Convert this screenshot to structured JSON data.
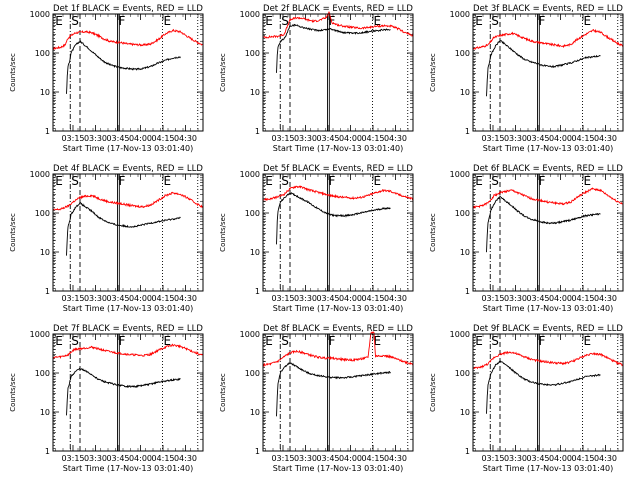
{
  "chart_data": {
    "type": "line",
    "grid_layout": "3x3",
    "xaxis": {
      "label": "Start Time (17-Nov-13 03:01:40)",
      "ticks": [
        "03:15",
        "03:30",
        "03:45",
        "04:00",
        "04:15",
        "04:30"
      ],
      "tick_minutes": [
        13.33,
        28.33,
        43.33,
        58.33,
        73.33,
        88.33
      ],
      "xlim_minutes": [
        0,
        100
      ]
    },
    "yaxis": {
      "label": "Counts/sec",
      "scale": "log",
      "ylim": [
        1,
        1000
      ],
      "ticks": [
        "1",
        "10",
        "100",
        "1000"
      ]
    },
    "series_legend": {
      "black": "Events",
      "red": "LLD"
    },
    "colors": {
      "black": "#000000",
      "red": "#ff0000"
    },
    "marker_lines": [
      {
        "label": "E",
        "minute": 0.8,
        "style": "dotted"
      },
      {
        "label": "S",
        "minute": 11.5,
        "style": "dashdot"
      },
      {
        "label": "",
        "minute": 18.0,
        "style": "dashed"
      },
      {
        "label": "F",
        "minute": 43.0,
        "style": "solid"
      },
      {
        "label": "",
        "minute": 44.2,
        "style": "solid"
      },
      {
        "label": "E",
        "minute": 73.0,
        "style": "dotted"
      },
      {
        "label": "",
        "minute": 96.5,
        "style": "dotted"
      }
    ],
    "panels": [
      {
        "title": "Det 1f BLACK = Events, RED = LLD",
        "xlabel": "Start Time (17-Nov-13 03:01:40)",
        "red": {
          "x": [
            0,
            5,
            8,
            10,
            12,
            15,
            18,
            22,
            26,
            30,
            34,
            38,
            42,
            45,
            50,
            55,
            60,
            65,
            70,
            75,
            80,
            85,
            90,
            95,
            100
          ],
          "y": [
            130,
            140,
            160,
            240,
            280,
            330,
            340,
            350,
            330,
            280,
            230,
            200,
            190,
            185,
            170,
            165,
            160,
            170,
            220,
            310,
            380,
            350,
            260,
            200,
            160
          ]
        },
        "black": {
          "x": [
            9,
            9.5,
            10,
            11,
            12,
            15,
            18,
            22,
            26,
            30,
            34,
            38,
            42,
            45,
            50,
            55,
            60,
            65,
            70,
            75,
            80,
            85
          ],
          "y": [
            9,
            25,
            45,
            60,
            100,
            160,
            200,
            150,
            110,
            80,
            60,
            50,
            45,
            42,
            40,
            38,
            40,
            45,
            55,
            65,
            75,
            80
          ]
        }
      },
      {
        "title": "Det 2f BLACK = Events, RED = LLD",
        "xlabel": "Start Time (17-Nov-13 03:01:40)",
        "red": {
          "x": [
            0,
            5,
            10,
            14,
            18,
            22,
            26,
            30,
            34,
            38,
            42,
            44,
            46,
            50,
            55,
            60,
            65,
            70,
            75,
            80,
            85,
            90,
            95,
            100
          ],
          "y": [
            250,
            260,
            270,
            300,
            700,
            800,
            780,
            700,
            650,
            700,
            800,
            1100,
            600,
            520,
            480,
            450,
            430,
            450,
            480,
            500,
            490,
            420,
            330,
            280
          ]
        },
        "black": {
          "x": [
            9,
            9.5,
            10,
            11,
            12,
            15,
            18,
            22,
            26,
            30,
            34,
            38,
            42,
            45,
            50,
            55,
            60,
            65,
            70,
            75,
            80,
            85
          ],
          "y": [
            30,
            90,
            140,
            170,
            200,
            260,
            500,
            520,
            460,
            420,
            390,
            380,
            400,
            420,
            360,
            330,
            320,
            330,
            350,
            370,
            390,
            400
          ]
        }
      },
      {
        "title": "Det 3f BLACK = Events, RED = LLD",
        "xlabel": "Start Time (17-Nov-13 03:01:40)",
        "red": {
          "x": [
            0,
            5,
            10,
            14,
            18,
            22,
            26,
            30,
            34,
            38,
            42,
            45,
            50,
            55,
            60,
            65,
            70,
            75,
            80,
            85,
            90,
            95,
            100
          ],
          "y": [
            130,
            140,
            160,
            250,
            280,
            300,
            320,
            280,
            240,
            210,
            190,
            185,
            170,
            160,
            150,
            165,
            230,
            300,
            380,
            340,
            250,
            190,
            150
          ]
        },
        "black": {
          "x": [
            9,
            9.5,
            10,
            11,
            12,
            15,
            18,
            22,
            26,
            30,
            34,
            38,
            42,
            45,
            50,
            55,
            60,
            65,
            70,
            75,
            80,
            85
          ],
          "y": [
            8,
            20,
            40,
            60,
            90,
            150,
            210,
            160,
            120,
            90,
            70,
            60,
            55,
            50,
            45,
            45,
            50,
            55,
            65,
            75,
            80,
            85
          ]
        }
      },
      {
        "title": "Det 4f BLACK = Events, RED = LLD",
        "xlabel": "Start Time (17-Nov-13 03:01:40)",
        "red": {
          "x": [
            0,
            5,
            10,
            14,
            18,
            22,
            26,
            30,
            34,
            38,
            42,
            45,
            50,
            55,
            60,
            65,
            70,
            75,
            80,
            85,
            90,
            95,
            100
          ],
          "y": [
            120,
            125,
            150,
            200,
            250,
            270,
            280,
            240,
            210,
            190,
            180,
            175,
            160,
            150,
            145,
            160,
            210,
            280,
            330,
            300,
            240,
            180,
            140
          ]
        },
        "black": {
          "x": [
            9,
            9.5,
            10,
            11,
            12,
            15,
            18,
            22,
            26,
            30,
            34,
            38,
            42,
            45,
            50,
            55,
            60,
            65,
            70,
            75,
            80,
            85
          ],
          "y": [
            8,
            22,
            45,
            60,
            90,
            140,
            180,
            140,
            110,
            80,
            65,
            55,
            50,
            48,
            45,
            45,
            50,
            55,
            60,
            65,
            70,
            75
          ]
        }
      },
      {
        "title": "Det 5f BLACK = Events, RED = LLD",
        "xlabel": "Start Time (17-Nov-13 03:01:40)",
        "red": {
          "x": [
            0,
            5,
            10,
            14,
            18,
            22,
            26,
            30,
            34,
            38,
            42,
            45,
            50,
            55,
            60,
            65,
            70,
            75,
            80,
            85,
            90,
            95,
            100
          ],
          "y": [
            220,
            230,
            260,
            300,
            420,
            480,
            460,
            400,
            360,
            330,
            300,
            280,
            260,
            250,
            240,
            250,
            280,
            330,
            380,
            360,
            300,
            260,
            230
          ]
        },
        "black": {
          "x": [
            9,
            9.5,
            10,
            11,
            12,
            15,
            18,
            22,
            26,
            30,
            34,
            38,
            42,
            45,
            50,
            55,
            60,
            65,
            70,
            75,
            80,
            85
          ],
          "y": [
            15,
            60,
            110,
            160,
            200,
            260,
            330,
            280,
            230,
            190,
            150,
            120,
            100,
            90,
            85,
            85,
            90,
            100,
            110,
            120,
            130,
            135
          ]
        }
      },
      {
        "title": "Det 6f BLACK = Events, RED = LLD",
        "xlabel": "Start Time (17-Nov-13 03:01:40)",
        "red": {
          "x": [
            0,
            5,
            10,
            14,
            18,
            22,
            26,
            30,
            34,
            38,
            42,
            45,
            50,
            55,
            60,
            65,
            70,
            75,
            80,
            85,
            90,
            95,
            100
          ],
          "y": [
            140,
            150,
            180,
            280,
            330,
            360,
            380,
            330,
            280,
            240,
            220,
            210,
            190,
            180,
            170,
            190,
            260,
            340,
            420,
            380,
            280,
            210,
            170
          ]
        },
        "black": {
          "x": [
            9,
            9.5,
            10,
            11,
            12,
            15,
            18,
            22,
            26,
            30,
            34,
            38,
            42,
            45,
            50,
            55,
            60,
            65,
            70,
            75,
            80,
            85
          ],
          "y": [
            10,
            28,
            55,
            80,
            120,
            200,
            260,
            200,
            150,
            110,
            85,
            70,
            65,
            60,
            55,
            55,
            60,
            65,
            75,
            85,
            90,
            95
          ]
        }
      },
      {
        "title": "Det 7f BLACK = Events, RED = LLD",
        "xlabel": "Start Time (17-Nov-13 03:01:40)",
        "red": {
          "x": [
            0,
            5,
            10,
            14,
            18,
            22,
            26,
            30,
            34,
            38,
            42,
            45,
            50,
            55,
            60,
            65,
            70,
            75,
            80,
            85,
            90,
            95,
            100
          ],
          "y": [
            250,
            260,
            290,
            400,
            420,
            440,
            460,
            420,
            380,
            350,
            330,
            320,
            300,
            290,
            280,
            300,
            380,
            460,
            520,
            480,
            400,
            330,
            280
          ]
        },
        "black": {
          "x": [
            9,
            9.5,
            10,
            11,
            12,
            15,
            18,
            22,
            26,
            30,
            34,
            38,
            42,
            45,
            50,
            55,
            60,
            65,
            70,
            75,
            80,
            85
          ],
          "y": [
            8,
            20,
            40,
            55,
            80,
            110,
            130,
            110,
            90,
            70,
            60,
            55,
            50,
            48,
            45,
            45,
            48,
            52,
            58,
            62,
            66,
            70
          ]
        }
      },
      {
        "title": "Det 8f BLACK = Events, RED = LLD",
        "xlabel": "Start Time (17-Nov-13 03:01:40)",
        "red": {
          "x": [
            0,
            5,
            10,
            14,
            18,
            22,
            26,
            30,
            34,
            38,
            42,
            45,
            50,
            55,
            60,
            65,
            70,
            72,
            74,
            75,
            80,
            85,
            90,
            95,
            100
          ],
          "y": [
            160,
            170,
            200,
            260,
            330,
            360,
            340,
            300,
            270,
            250,
            240,
            240,
            230,
            220,
            215,
            230,
            250,
            1100,
            1100,
            270,
            280,
            260,
            220,
            190,
            170
          ]
        },
        "black": {
          "x": [
            9,
            9.5,
            10,
            11,
            12,
            15,
            18,
            22,
            26,
            30,
            34,
            38,
            42,
            45,
            50,
            55,
            60,
            65,
            70,
            75,
            80,
            85
          ],
          "y": [
            8,
            25,
            55,
            80,
            110,
            150,
            180,
            150,
            120,
            100,
            90,
            85,
            80,
            78,
            76,
            76,
            80,
            85,
            90,
            95,
            100,
            105
          ]
        }
      },
      {
        "title": "Det 9f BLACK = Events, RED = LLD",
        "xlabel": "Start Time (17-Nov-13 03:01:40)",
        "red": {
          "x": [
            0,
            5,
            10,
            14,
            18,
            22,
            26,
            30,
            34,
            38,
            42,
            45,
            50,
            55,
            60,
            65,
            70,
            75,
            80,
            85,
            90,
            95,
            100
          ],
          "y": [
            130,
            140,
            170,
            250,
            300,
            330,
            340,
            300,
            260,
            230,
            210,
            200,
            190,
            180,
            175,
            190,
            230,
            280,
            320,
            300,
            240,
            190,
            160
          ]
        },
        "black": {
          "x": [
            9,
            9.5,
            10,
            11,
            12,
            15,
            18,
            22,
            26,
            30,
            34,
            38,
            42,
            45,
            50,
            55,
            60,
            65,
            70,
            75,
            80,
            85
          ],
          "y": [
            9,
            25,
            50,
            70,
            100,
            160,
            200,
            160,
            120,
            90,
            70,
            60,
            55,
            52,
            50,
            50,
            55,
            60,
            70,
            80,
            85,
            90
          ]
        }
      }
    ]
  }
}
